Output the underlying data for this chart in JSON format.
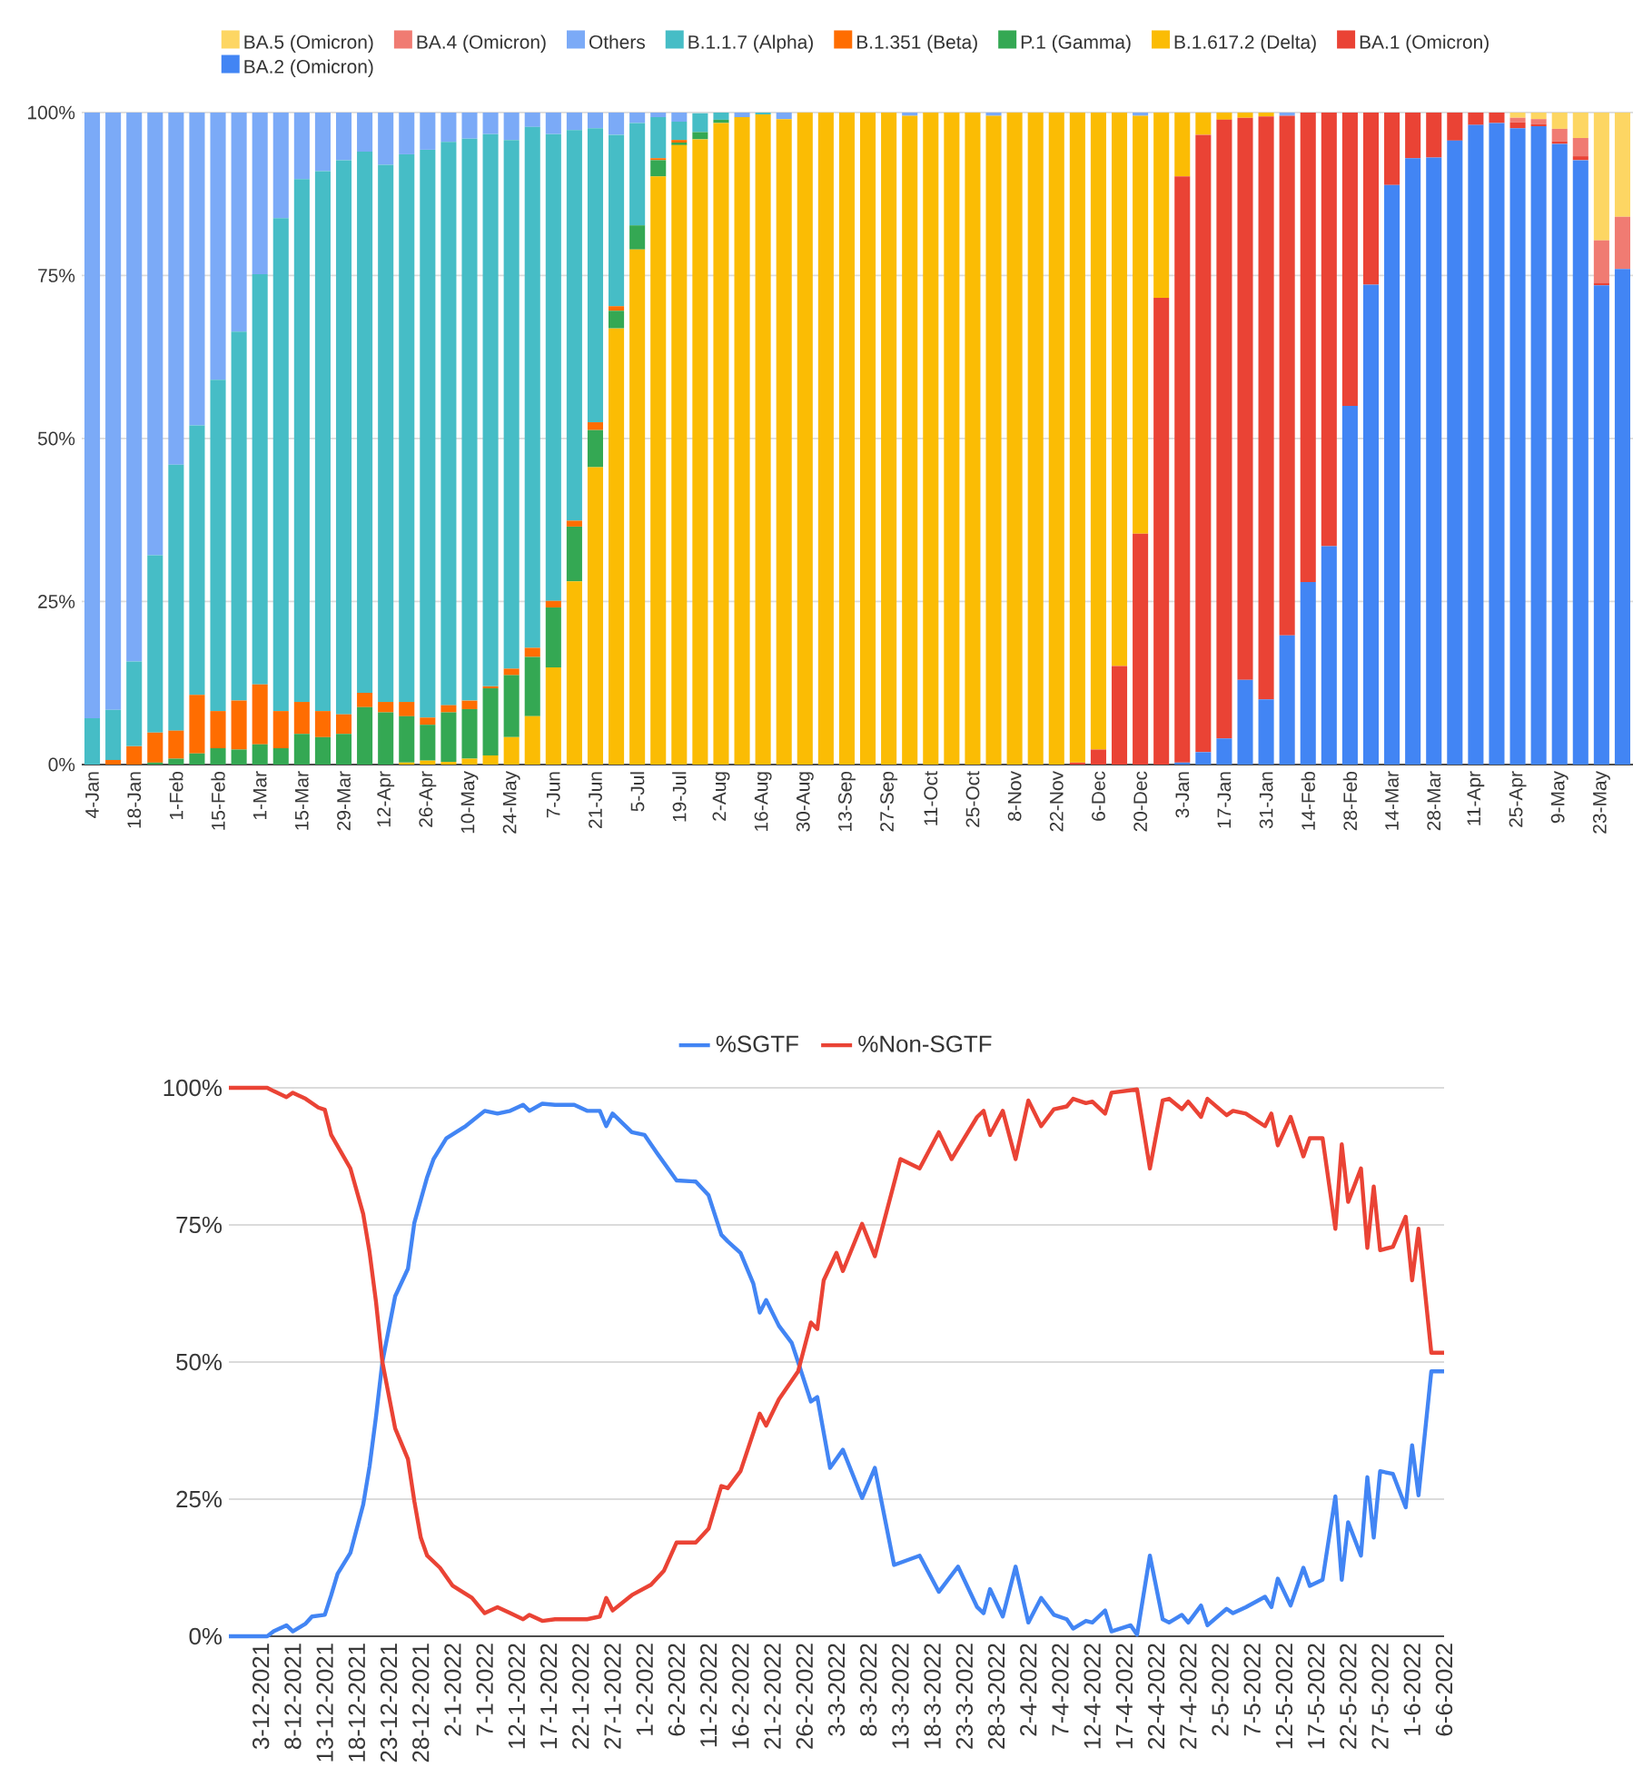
{
  "chart_data": [
    {
      "type": "bar",
      "stacked": true,
      "legend": "top",
      "grid": "y",
      "categories": [
        "4-Jan",
        null,
        "18-Jan",
        null,
        "1-Feb",
        null,
        "15-Feb",
        null,
        "1-Mar",
        null,
        "15-Mar",
        null,
        "29-Mar",
        null,
        "12-Apr",
        null,
        "26-Apr",
        null,
        "10-May",
        null,
        "24-May",
        null,
        "7-Jun",
        null,
        "21-Jun",
        null,
        "5-Jul",
        null,
        "19-Jul",
        null,
        "2-Aug",
        null,
        "16-Aug",
        null,
        "30-Aug",
        null,
        "13-Sep",
        null,
        "27-Sep",
        null,
        "11-Oct",
        null,
        "25-Oct",
        null,
        "8-Nov",
        null,
        "22-Nov",
        null,
        "6-Dec",
        null,
        "20-Dec",
        null,
        "3-Jan",
        null,
        "17-Jan",
        null,
        "31-Jan",
        null,
        "14-Feb",
        null,
        "28-Feb",
        null,
        "14-Mar",
        null,
        "28-Mar",
        null,
        "11-Apr",
        null,
        "25-Apr",
        null,
        "9-May",
        null,
        "23-May",
        null
      ],
      "ylim": [
        0,
        100
      ],
      "yticks": [
        {
          "value": 0,
          "label": "0%"
        },
        {
          "value": 25,
          "label": "25%"
        },
        {
          "value": 50,
          "label": "50%"
        },
        {
          "value": 75,
          "label": "75%"
        },
        {
          "value": 100,
          "label": "100%"
        }
      ],
      "series": [
        {
          "name": "BA.2 (Omicron)",
          "color": "#4285f4",
          "values": [
            0,
            0,
            0,
            0,
            0,
            0,
            0,
            0,
            0,
            0,
            0,
            0,
            0,
            0,
            0,
            0,
            0,
            0,
            0,
            0,
            0,
            0,
            0,
            0,
            0,
            0,
            0,
            0,
            0,
            0,
            0,
            0,
            0,
            0,
            0,
            0,
            0,
            0,
            0,
            0,
            0,
            0,
            0,
            0,
            0,
            0,
            0,
            0,
            0,
            0,
            0,
            0,
            0.3,
            1.9,
            4,
            13,
            10,
            19.8,
            28,
            33.5,
            55,
            73.6,
            88.9,
            93,
            93.1,
            95.7,
            98.1,
            98.4,
            97.6,
            97.9,
            95.2,
            92.7,
            73.5,
            76
          ]
        },
        {
          "name": "BA.1 (Omicron)",
          "color": "#ea4335",
          "values": [
            0,
            0,
            0,
            0,
            0,
            0,
            0,
            0,
            0,
            0,
            0,
            0,
            0,
            0,
            0,
            0,
            0,
            0,
            0,
            0,
            0,
            0,
            0,
            0,
            0,
            0,
            0,
            0,
            0,
            0,
            0,
            0,
            0,
            0,
            0,
            0,
            0,
            0,
            0,
            0,
            0,
            0,
            0,
            0,
            0,
            0,
            0,
            0.3,
            2.3,
            15.1,
            35.4,
            71.6,
            89.9,
            94.7,
            94.9,
            86.2,
            89.4,
            79.7,
            72,
            66.5,
            45,
            26.4,
            11.1,
            7,
            6.9,
            4.3,
            1.9,
            1.6,
            0.9,
            0.3,
            0.4,
            0.6,
            0.4,
            0
          ]
        },
        {
          "name": "B.1.617.2 (Delta)",
          "color": "#fbbc04",
          "values": [
            0,
            0,
            0,
            0,
            0,
            0,
            0,
            0,
            0,
            0,
            0,
            0,
            0,
            0,
            0,
            0.3,
            0.6,
            0.4,
            0.9,
            1.4,
            4.2,
            7.4,
            14.9,
            28.1,
            45.6,
            66.9,
            79,
            90.2,
            95,
            95.9,
            98.4,
            99.3,
            99.7,
            99,
            100,
            100,
            100,
            100,
            100,
            99.5,
            100,
            100,
            100,
            99.5,
            100,
            100,
            100,
            99.7,
            97.7,
            84.9,
            64.1,
            28.4,
            9.8,
            3.4,
            1.1,
            0.8,
            0.6,
            0,
            0,
            0,
            0,
            0,
            0,
            0,
            0,
            0,
            0,
            0,
            0,
            0,
            0,
            0,
            0,
            0
          ]
        },
        {
          "name": "P.1 (Gamma)",
          "color": "#34a853",
          "values": [
            0,
            0,
            0,
            0.3,
            0.9,
            1.7,
            2.5,
            2.3,
            3.1,
            2.5,
            4.7,
            4.2,
            4.7,
            8.8,
            8,
            7.1,
            5.5,
            7.6,
            7.6,
            10.3,
            9.5,
            9.1,
            9.2,
            8.4,
            5.7,
            2.7,
            3.7,
            2.5,
            0.4,
            1.1,
            0.5,
            0,
            0,
            0,
            0,
            0,
            0,
            0,
            0,
            0,
            0,
            0,
            0,
            0,
            0,
            0,
            0,
            0,
            0,
            0,
            0,
            0,
            0,
            0,
            0,
            0,
            0,
            0,
            0,
            0,
            0,
            0,
            0,
            0,
            0,
            0,
            0,
            0,
            0,
            0,
            0,
            0,
            0,
            0
          ]
        },
        {
          "name": "B.1.351 (Beta)",
          "color": "#ff6d01",
          "values": [
            0,
            0.7,
            2.8,
            4.6,
            4.3,
            9,
            5.7,
            7.5,
            9.2,
            5.7,
            4.9,
            4,
            3,
            2.2,
            1.6,
            2.2,
            1.1,
            1.1,
            1.3,
            0.3,
            1,
            1.4,
            1,
            0.9,
            1.2,
            0.7,
            0,
            0.3,
            0.4,
            0,
            0,
            0,
            0,
            0,
            0,
            0,
            0,
            0,
            0,
            0,
            0,
            0,
            0,
            0,
            0,
            0,
            0,
            0,
            0,
            0,
            0,
            0,
            0,
            0,
            0,
            0,
            0,
            0,
            0,
            0,
            0,
            0,
            0,
            0,
            0,
            0,
            0,
            0,
            0,
            0,
            0,
            0,
            0,
            0
          ]
        },
        {
          "name": "B.1.1.7 (Alpha)",
          "color": "#46bdc6",
          "values": [
            7.1,
            7.7,
            13,
            27.2,
            40.8,
            41.3,
            50.8,
            56.6,
            62.9,
            75.6,
            80.2,
            82.8,
            85,
            83,
            82.4,
            84,
            87.1,
            86.4,
            86.2,
            84.7,
            81.1,
            79.9,
            71.6,
            59.9,
            45.1,
            26.3,
            15.7,
            6.3,
            2.8,
            2.9,
            1.1,
            0,
            0.3,
            0,
            0,
            0,
            0,
            0,
            0,
            0,
            0,
            0,
            0,
            0,
            0,
            0,
            0,
            0,
            0,
            0,
            0,
            0,
            0,
            0,
            0,
            0,
            0,
            0,
            0,
            0,
            0,
            0,
            0,
            0,
            0,
            0,
            0,
            0,
            0,
            0,
            0,
            0,
            0,
            0
          ]
        },
        {
          "name": "Others",
          "color": "#7baaf7",
          "values": [
            92.9,
            91.6,
            84.2,
            67.9,
            54,
            48,
            41,
            33.6,
            24.8,
            16.2,
            10.2,
            9,
            7.3,
            6,
            8,
            6.4,
            5.7,
            4.5,
            4,
            3.3,
            4.2,
            2.2,
            3.3,
            2.7,
            2.4,
            3.4,
            1.6,
            0.7,
            1.4,
            0,
            0,
            0.7,
            0,
            1,
            0,
            0,
            0,
            0,
            0,
            0.5,
            0,
            0,
            0,
            0.5,
            0,
            0,
            0,
            0,
            0,
            0,
            0.5,
            0,
            0,
            0,
            0,
            0,
            0,
            0.5,
            0,
            0,
            0,
            0,
            0,
            0,
            0,
            0,
            0,
            0,
            0,
            0,
            0,
            0,
            0,
            0
          ]
        },
        {
          "name": "BA.4 (Omicron)",
          "color": "#f07b72",
          "values": [
            0,
            0,
            0,
            0,
            0,
            0,
            0,
            0,
            0,
            0,
            0,
            0,
            0,
            0,
            0,
            0,
            0,
            0,
            0,
            0,
            0,
            0,
            0,
            0,
            0,
            0,
            0,
            0,
            0,
            0,
            0,
            0,
            0,
            0,
            0,
            0,
            0,
            0,
            0,
            0,
            0,
            0,
            0,
            0,
            0,
            0,
            0,
            0,
            0,
            0,
            0,
            0,
            0,
            0,
            0,
            0,
            0,
            0,
            0,
            0,
            0,
            0,
            0,
            0,
            0,
            0,
            0,
            0,
            0.7,
            0.8,
            1.9,
            2.8,
            6.5,
            8
          ]
        },
        {
          "name": "BA.5 (Omicron)",
          "color": "#fdd663",
          "values": [
            0,
            0,
            0,
            0,
            0,
            0,
            0,
            0,
            0,
            0,
            0,
            0,
            0,
            0,
            0,
            0,
            0,
            0,
            0,
            0,
            0,
            0,
            0,
            0,
            0,
            0,
            0,
            0,
            0,
            0,
            0,
            0,
            0,
            0,
            0,
            0,
            0,
            0,
            0,
            0,
            0,
            0,
            0,
            0,
            0,
            0,
            0,
            0,
            0,
            0,
            0,
            0,
            0,
            0,
            0,
            0,
            0,
            0,
            0,
            0,
            0,
            0,
            0,
            0,
            0,
            0,
            0,
            0,
            0.8,
            1,
            2.5,
            3.9,
            19.6,
            16
          ]
        }
      ]
    },
    {
      "type": "line",
      "legend": "top",
      "grid": "y",
      "xlim": [
        "2021-11-28",
        "2022-06-06"
      ],
      "xticks": [
        {
          "value": "2021-12-03",
          "label": "3-12-2021"
        },
        {
          "value": "2021-12-08",
          "label": "8-12-2021"
        },
        {
          "value": "2021-12-13",
          "label": "13-12-2021"
        },
        {
          "value": "2021-12-18",
          "label": "18-12-2021"
        },
        {
          "value": "2021-12-23",
          "label": "23-12-2021"
        },
        {
          "value": "2021-12-28",
          "label": "28-12-2021"
        },
        {
          "value": "2022-01-02",
          "label": "2-1-2022"
        },
        {
          "value": "2022-01-07",
          "label": "7-1-2022"
        },
        {
          "value": "2022-01-12",
          "label": "12-1-2022"
        },
        {
          "value": "2022-01-17",
          "label": "17-1-2022"
        },
        {
          "value": "2022-01-22",
          "label": "22-1-2022"
        },
        {
          "value": "2022-01-27",
          "label": "27-1-2022"
        },
        {
          "value": "2022-02-01",
          "label": "1-2-2022"
        },
        {
          "value": "2022-02-06",
          "label": "6-2-2022"
        },
        {
          "value": "2022-02-11",
          "label": "11-2-2022"
        },
        {
          "value": "2022-02-16",
          "label": "16-2-2022"
        },
        {
          "value": "2022-02-21",
          "label": "21-2-2022"
        },
        {
          "value": "2022-02-26",
          "label": "26-2-2022"
        },
        {
          "value": "2022-03-03",
          "label": "3-3-2022"
        },
        {
          "value": "2022-03-08",
          "label": "8-3-2022"
        },
        {
          "value": "2022-03-13",
          "label": "13-3-2022"
        },
        {
          "value": "2022-03-18",
          "label": "18-3-2022"
        },
        {
          "value": "2022-03-23",
          "label": "23-3-2022"
        },
        {
          "value": "2022-03-28",
          "label": "28-3-2022"
        },
        {
          "value": "2022-04-02",
          "label": "2-4-2022"
        },
        {
          "value": "2022-04-07",
          "label": "7-4-2022"
        },
        {
          "value": "2022-04-12",
          "label": "12-4-2022"
        },
        {
          "value": "2022-04-17",
          "label": "17-4-2022"
        },
        {
          "value": "2022-04-22",
          "label": "22-4-2022"
        },
        {
          "value": "2022-04-27",
          "label": "27-4-2022"
        },
        {
          "value": "2022-05-02",
          "label": "2-5-2022"
        },
        {
          "value": "2022-05-07",
          "label": "7-5-2022"
        },
        {
          "value": "2022-05-12",
          "label": "12-5-2022"
        },
        {
          "value": "2022-05-17",
          "label": "17-5-2022"
        },
        {
          "value": "2022-05-22",
          "label": "22-5-2022"
        },
        {
          "value": "2022-05-27",
          "label": "27-5-2022"
        },
        {
          "value": "2022-06-01",
          "label": "1-6-2022"
        },
        {
          "value": "2022-06-06",
          "label": "6-6-2022"
        }
      ],
      "ylim": [
        0,
        100
      ],
      "yticks": [
        {
          "value": 0,
          "label": "0%"
        },
        {
          "value": 25,
          "label": "25%"
        },
        {
          "value": 50,
          "label": "50%"
        },
        {
          "value": 75,
          "label": "75%"
        },
        {
          "value": 100,
          "label": "100%"
        }
      ],
      "series": [
        {
          "name": "%SGTF",
          "color": "#4285f4",
          "x": [
            "2021-11-28",
            "2021-12-04",
            "2021-12-05",
            "2021-12-07",
            "2021-12-08",
            "2021-12-10",
            "2021-12-11",
            "2021-12-13",
            "2021-12-14",
            "2021-12-15",
            "2021-12-17",
            "2021-12-19",
            "2021-12-20",
            "2021-12-21",
            "2021-12-22",
            "2021-12-24",
            "2021-12-26",
            "2021-12-27",
            "2021-12-29",
            "2021-12-30",
            "2022-01-01",
            "2022-01-04",
            "2022-01-07",
            "2022-01-09",
            "2022-01-11",
            "2022-01-13",
            "2022-01-14",
            "2022-01-16",
            "2022-01-18",
            "2022-01-21",
            "2022-01-23",
            "2022-01-25",
            "2022-01-26",
            "2022-01-27",
            "2022-01-30",
            "2022-02-01",
            "2022-02-03",
            "2022-02-06",
            "2022-02-09",
            "2022-02-11",
            "2022-02-13",
            "2022-02-14",
            "2022-02-16",
            "2022-02-18",
            "2022-02-19",
            "2022-02-20",
            "2022-02-22",
            "2022-02-24",
            "2022-02-25",
            "2022-02-27",
            "2022-02-28",
            "2022-03-02",
            "2022-03-04",
            "2022-03-07",
            "2022-03-09",
            "2022-03-12",
            "2022-03-16",
            "2022-03-19",
            "2022-03-22",
            "2022-03-25",
            "2022-03-26",
            "2022-03-27",
            "2022-03-29",
            "2022-03-31",
            "2022-04-02",
            "2022-04-04",
            "2022-04-06",
            "2022-04-08",
            "2022-04-09",
            "2022-04-11",
            "2022-04-12",
            "2022-04-13",
            "2022-04-14",
            "2022-04-15",
            "2022-04-18",
            "2022-04-19",
            "2022-04-21",
            "2022-04-23",
            "2022-04-24",
            "2022-04-26",
            "2022-04-27",
            "2022-04-29",
            "2022-04-30",
            "2022-05-03",
            "2022-05-04",
            "2022-05-06",
            "2022-05-09",
            "2022-05-10",
            "2022-05-11",
            "2022-05-13",
            "2022-05-15",
            "2022-05-16",
            "2022-05-18",
            "2022-05-20",
            "2022-05-21",
            "2022-05-22",
            "2022-05-24",
            "2022-05-25",
            "2022-05-26",
            "2022-05-27",
            "2022-05-29",
            "2022-05-31",
            "2022-06-01",
            "2022-06-02",
            "2022-06-04",
            "2022-06-06"
          ],
          "values": [
            0,
            0,
            0.9,
            2,
            0.9,
            2.3,
            3.6,
            3.9,
            7.5,
            11.4,
            15.2,
            24,
            31,
            40,
            50,
            62,
            67,
            75.4,
            83.7,
            87,
            90.8,
            93,
            95.8,
            95.3,
            95.8,
            96.9,
            95.8,
            97.1,
            96.9,
            96.9,
            95.8,
            95.8,
            93,
            95.3,
            91.9,
            91.4,
            88,
            83.1,
            82.9,
            80.4,
            73.2,
            72,
            69.9,
            64.3,
            59,
            61.3,
            56.6,
            53.5,
            50,
            42.8,
            43.6,
            30.7,
            34,
            25.2,
            30.7,
            13,
            14.7,
            8.1,
            12.7,
            5.3,
            4.2,
            8.6,
            3.6,
            12.7,
            2.5,
            7,
            3.9,
            3.1,
            1.4,
            2.8,
            2.5,
            3.6,
            4.7,
            0.9,
            2,
            0.3,
            14.7,
            3.1,
            2.5,
            3.9,
            2.5,
            5.6,
            2,
            5,
            4.2,
            5.3,
            7.2,
            5.3,
            10.5,
            5.6,
            12.5,
            9.2,
            10.3,
            25.5,
            10.3,
            20.8,
            14.7,
            29,
            18,
            30.1,
            29.6,
            23.5,
            34.8,
            25.7,
            48.3,
            48.3
          ]
        },
        {
          "name": "%Non-SGTF",
          "color": "#ea4335",
          "x": [
            "2021-11-28",
            "2021-12-04",
            "2021-12-05",
            "2021-12-07",
            "2021-12-08",
            "2021-12-10",
            "2021-12-12",
            "2021-12-13",
            "2021-12-14",
            "2021-12-17",
            "2021-12-19",
            "2021-12-20",
            "2021-12-21",
            "2021-12-22",
            "2021-12-24",
            "2021-12-26",
            "2021-12-27",
            "2021-12-28",
            "2021-12-29",
            "2021-12-31",
            "2022-01-02",
            "2022-01-05",
            "2022-01-07",
            "2022-01-09",
            "2022-01-11",
            "2022-01-13",
            "2022-01-14",
            "2022-01-16",
            "2022-01-18",
            "2022-01-21",
            "2022-01-23",
            "2022-01-25",
            "2022-01-26",
            "2022-01-27",
            "2022-01-30",
            "2022-02-02",
            "2022-02-04",
            "2022-02-06",
            "2022-02-09",
            "2022-02-11",
            "2022-02-13",
            "2022-02-14",
            "2022-02-16",
            "2022-02-19",
            "2022-02-20",
            "2022-02-22",
            "2022-02-25",
            "2022-02-27",
            "2022-02-28",
            "2022-03-01",
            "2022-03-03",
            "2022-03-04",
            "2022-03-07",
            "2022-03-09",
            "2022-03-13",
            "2022-03-16",
            "2022-03-19",
            "2022-03-21",
            "2022-03-25",
            "2022-03-26",
            "2022-03-27",
            "2022-03-29",
            "2022-03-31",
            "2022-04-02",
            "2022-04-04",
            "2022-04-06",
            "2022-04-08",
            "2022-04-09",
            "2022-04-11",
            "2022-04-12",
            "2022-04-14",
            "2022-04-15",
            "2022-04-19",
            "2022-04-21",
            "2022-04-23",
            "2022-04-24",
            "2022-04-26",
            "2022-04-27",
            "2022-04-29",
            "2022-04-30",
            "2022-05-03",
            "2022-05-04",
            "2022-05-06",
            "2022-05-09",
            "2022-05-10",
            "2022-05-11",
            "2022-05-13",
            "2022-05-15",
            "2022-05-16",
            "2022-05-18",
            "2022-05-20",
            "2022-05-21",
            "2022-05-22",
            "2022-05-24",
            "2022-05-25",
            "2022-05-26",
            "2022-05-27",
            "2022-05-29",
            "2022-05-31",
            "2022-06-01",
            "2022-06-02",
            "2022-06-04",
            "2022-06-06"
          ],
          "values": [
            100,
            100,
            99.4,
            98.3,
            99.1,
            98,
            96.4,
            96,
            91.4,
            85.3,
            77,
            70,
            61,
            50,
            37.9,
            32.3,
            24.6,
            18,
            14.7,
            12.5,
            9.2,
            7,
            4.2,
            5.3,
            4.2,
            3.1,
            3.9,
            2.8,
            3.1,
            3.1,
            3.1,
            3.6,
            7,
            4.7,
            7.5,
            9.4,
            11.9,
            17.1,
            17.1,
            19.6,
            27.4,
            27,
            30.1,
            40.6,
            38.4,
            43.2,
            48.3,
            57.2,
            56,
            64.9,
            69.9,
            66.6,
            75.2,
            69.3,
            87,
            85.3,
            91.9,
            87,
            94.7,
            95.8,
            91.4,
            95.8,
            87,
            97.7,
            93,
            96.1,
            96.6,
            98,
            97.2,
            97.5,
            95.3,
            99.1,
            99.7,
            85.3,
            97.7,
            98,
            96.1,
            97.5,
            94.7,
            98,
            95,
            95.8,
            95.3,
            93,
            95.3,
            89.5,
            94.7,
            87.5,
            90.8,
            90.8,
            74.3,
            89.7,
            79.2,
            85.3,
            70.8,
            82,
            70.4,
            71,
            76.5,
            64.9,
            74.3,
            51.7,
            51.7
          ]
        }
      ]
    }
  ]
}
